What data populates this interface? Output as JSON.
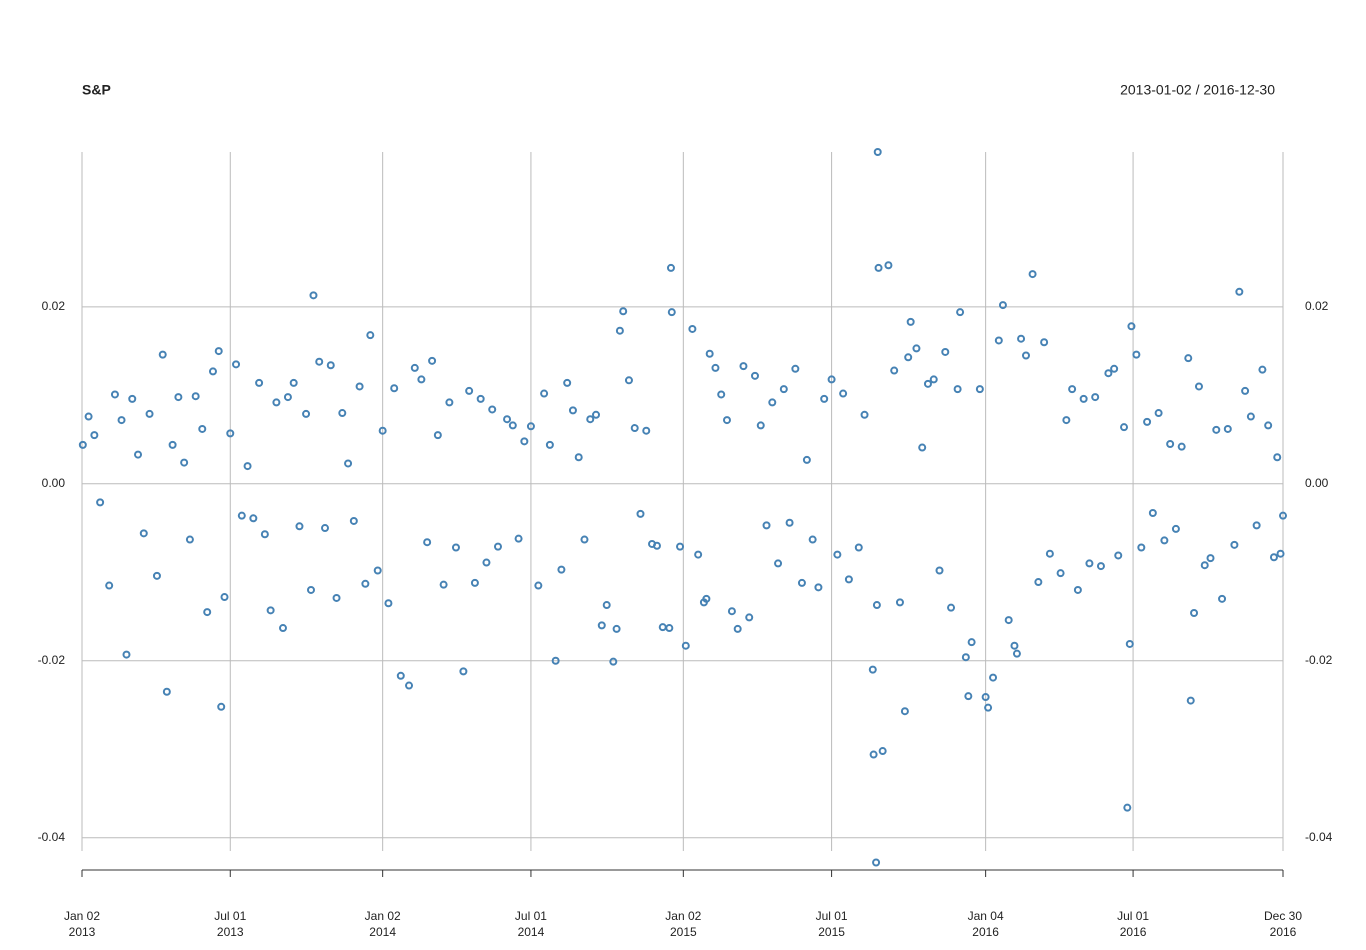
{
  "chart_data": {
    "type": "scatter",
    "title": "S&P",
    "subtitle": "2013-01-02 / 2016-12-30",
    "color": "#4682b4",
    "grid": true,
    "xlim": [
      "2013-01-02",
      "2016-12-30"
    ],
    "ylim": [
      -0.0415,
      0.0375
    ],
    "yticks": [
      0.02,
      {
        "value": 0,
        "label": "0.00"
      },
      -0.02,
      -0.04
    ],
    "xticks": [
      {
        "value": "2013-01-02",
        "label": "Jan 02 2013"
      },
      {
        "value": "2013-07-01",
        "label": "Jul 01 2013"
      },
      {
        "value": "2014-01-02",
        "label": "Jan 02 2014"
      },
      {
        "value": "2014-07-01",
        "label": "Jul 01 2014"
      },
      {
        "value": "2015-01-02",
        "label": "Jan 02 2015"
      },
      {
        "value": "2015-07-01",
        "label": "Jul 01 2015"
      },
      {
        "value": "2016-01-04",
        "label": "Jan 04 2016"
      },
      {
        "value": "2016-07-01",
        "label": "Jul 01 2016"
      },
      {
        "value": "2016-12-30",
        "label": "Dec 30 2016"
      }
    ],
    "x": [
      "2013-01-03",
      "2013-01-10",
      "2013-01-17",
      "2013-01-24",
      "2013-02-04",
      "2013-02-11",
      "2013-02-19",
      "2013-02-25",
      "2013-03-04",
      "2013-03-11",
      "2013-03-18",
      "2013-03-25",
      "2013-04-03",
      "2013-04-10",
      "2013-04-15",
      "2013-04-22",
      "2013-04-29",
      "2013-05-06",
      "2013-05-13",
      "2013-05-20",
      "2013-05-28",
      "2013-06-03",
      "2013-06-10",
      "2013-06-17",
      "2013-06-20",
      "2013-06-24",
      "2013-07-01",
      "2013-07-08",
      "2013-07-15",
      "2013-07-22",
      "2013-07-29",
      "2013-08-05",
      "2013-08-12",
      "2013-08-19",
      "2013-08-26",
      "2013-09-03",
      "2013-09-09",
      "2013-09-16",
      "2013-09-23",
      "2013-10-01",
      "2013-10-07",
      "2013-10-10",
      "2013-10-17",
      "2013-10-24",
      "2013-10-31",
      "2013-11-07",
      "2013-11-14",
      "2013-11-21",
      "2013-11-28",
      "2013-12-05",
      "2013-12-12",
      "2013-12-18",
      "2013-12-27",
      "2014-01-02",
      "2014-01-09",
      "2014-01-16",
      "2014-01-24",
      "2014-02-03",
      "2014-02-10",
      "2014-02-18",
      "2014-02-25",
      "2014-03-03",
      "2014-03-10",
      "2014-03-17",
      "2014-03-24",
      "2014-04-01",
      "2014-04-10",
      "2014-04-17",
      "2014-04-24",
      "2014-05-01",
      "2014-05-08",
      "2014-05-15",
      "2014-05-22",
      "2014-06-02",
      "2014-06-09",
      "2014-06-16",
      "2014-06-23",
      "2014-07-01",
      "2014-07-10",
      "2014-07-17",
      "2014-07-24",
      "2014-07-31",
      "2014-08-07",
      "2014-08-14",
      "2014-08-21",
      "2014-08-28",
      "2014-09-04",
      "2014-09-11",
      "2014-09-18",
      "2014-09-25",
      "2014-10-01",
      "2014-10-09",
      "2014-10-13",
      "2014-10-17",
      "2014-10-21",
      "2014-10-28",
      "2014-11-04",
      "2014-11-11",
      "2014-11-18",
      "2014-11-25",
      "2014-12-01",
      "2014-12-08",
      "2014-12-16",
      "2014-12-18",
      "2014-12-19",
      "2014-12-29",
      "2015-01-05",
      "2015-01-13",
      "2015-01-20",
      "2015-01-27",
      "2015-01-30",
      "2015-02-03",
      "2015-02-10",
      "2015-02-17",
      "2015-02-24",
      "2015-03-02",
      "2015-03-09",
      "2015-03-16",
      "2015-03-23",
      "2015-03-30",
      "2015-04-06",
      "2015-04-13",
      "2015-04-20",
      "2015-04-27",
      "2015-05-04",
      "2015-05-11",
      "2015-05-18",
      "2015-05-26",
      "2015-06-01",
      "2015-06-08",
      "2015-06-15",
      "2015-06-22",
      "2015-07-01",
      "2015-07-08",
      "2015-07-15",
      "2015-07-22",
      "2015-08-03",
      "2015-08-10",
      "2015-08-20",
      "2015-08-21",
      "2015-08-24",
      "2015-08-25",
      "2015-08-26",
      "2015-08-27",
      "2015-09-01",
      "2015-09-08",
      "2015-09-15",
      "2015-09-22",
      "2015-09-28",
      "2015-10-02",
      "2015-10-05",
      "2015-10-12",
      "2015-10-19",
      "2015-10-26",
      "2015-11-02",
      "2015-11-09",
      "2015-11-16",
      "2015-11-23",
      "2015-12-01",
      "2015-12-04",
      "2015-12-11",
      "2015-12-14",
      "2015-12-18",
      "2015-12-28",
      "2016-01-04",
      "2016-01-07",
      "2016-01-13",
      "2016-01-20",
      "2016-01-25",
      "2016-02-01",
      "2016-02-08",
      "2016-02-11",
      "2016-02-16",
      "2016-02-22",
      "2016-03-01",
      "2016-03-08",
      "2016-03-15",
      "2016-03-22",
      "2016-04-04",
      "2016-04-11",
      "2016-04-18",
      "2016-04-25",
      "2016-05-02",
      "2016-05-09",
      "2016-05-16",
      "2016-05-23",
      "2016-06-01",
      "2016-06-08",
      "2016-06-13",
      "2016-06-20",
      "2016-06-24",
      "2016-06-27",
      "2016-06-29",
      "2016-07-05",
      "2016-07-11",
      "2016-07-18",
      "2016-07-25",
      "2016-08-01",
      "2016-08-08",
      "2016-08-15",
      "2016-08-22",
      "2016-08-29",
      "2016-09-06",
      "2016-09-09",
      "2016-09-13",
      "2016-09-19",
      "2016-09-26",
      "2016-10-03",
      "2016-10-10",
      "2016-10-17",
      "2016-10-24",
      "2016-11-01",
      "2016-11-07",
      "2016-11-14",
      "2016-11-21",
      "2016-11-28",
      "2016-12-05",
      "2016-12-12",
      "2016-12-19",
      "2016-12-23",
      "2016-12-27",
      "2016-12-30"
    ],
    "values": [
      0.0044,
      0.0076,
      0.0055,
      -0.0021,
      -0.0115,
      0.0101,
      0.0072,
      -0.0193,
      0.0096,
      0.0033,
      -0.0056,
      0.0079,
      -0.0104,
      0.0146,
      -0.0235,
      0.0044,
      0.0098,
      0.0024,
      -0.0063,
      0.0099,
      0.0062,
      -0.0145,
      0.0127,
      0.015,
      -0.0252,
      -0.0128,
      0.0057,
      0.0135,
      -0.0036,
      0.002,
      -0.0039,
      0.0114,
      -0.0057,
      -0.0143,
      0.0092,
      -0.0163,
      0.0098,
      0.0114,
      -0.0048,
      0.0079,
      -0.012,
      0.0213,
      0.0138,
      -0.005,
      0.0134,
      -0.0129,
      0.008,
      0.0023,
      -0.0042,
      0.011,
      -0.0113,
      0.0168,
      -0.0098,
      0.006,
      -0.0135,
      0.0108,
      -0.0217,
      -0.0228,
      0.0131,
      0.0118,
      -0.0066,
      0.0139,
      0.0055,
      -0.0114,
      0.0092,
      -0.0072,
      -0.0212,
      0.0105,
      -0.0112,
      0.0096,
      -0.0089,
      0.0084,
      -0.0071,
      0.0073,
      0.0066,
      -0.0062,
      0.0048,
      0.0065,
      -0.0115,
      0.0102,
      0.0044,
      -0.02,
      -0.0097,
      0.0114,
      0.0083,
      0.003,
      -0.0063,
      0.0073,
      0.0078,
      -0.016,
      -0.0137,
      -0.0201,
      -0.0164,
      0.0173,
      0.0195,
      0.0117,
      0.0063,
      -0.0034,
      0.006,
      -0.0068,
      -0.007,
      -0.0162,
      -0.0163,
      0.0244,
      0.0194,
      -0.0071,
      -0.0183,
      0.0175,
      -0.008,
      -0.0134,
      -0.013,
      0.0147,
      0.0131,
      0.0101,
      0.0072,
      -0.0144,
      -0.0164,
      0.0133,
      -0.0151,
      0.0122,
      0.0066,
      -0.0047,
      0.0092,
      -0.009,
      0.0107,
      -0.0044,
      0.013,
      -0.0112,
      0.0027,
      -0.0063,
      -0.0117,
      0.0096,
      0.0118,
      -0.008,
      0.0102,
      -0.0108,
      -0.0072,
      0.0078,
      -0.021,
      -0.0306,
      -0.0428,
      -0.0137,
      0.0375,
      0.0244,
      -0.0302,
      0.0247,
      0.0128,
      -0.0134,
      -0.0257,
      0.0143,
      0.0183,
      0.0153,
      0.0041,
      0.0113,
      0.0118,
      -0.0098,
      0.0149,
      -0.014,
      0.0107,
      0.0194,
      -0.0196,
      -0.024,
      -0.0179,
      0.0107,
      -0.0241,
      -0.0253,
      -0.0219,
      0.0162,
      0.0202,
      -0.0154,
      -0.0183,
      -0.0192,
      0.0164,
      0.0145,
      0.0237,
      -0.0111,
      0.016,
      -0.0079,
      -0.0101,
      0.0072,
      0.0107,
      -0.012,
      0.0096,
      -0.009,
      0.0098,
      -0.0093,
      0.0125,
      0.013,
      -0.0081,
      0.0064,
      -0.0366,
      -0.0181,
      0.0178,
      0.0146,
      -0.0072,
      0.007,
      -0.0033,
      0.008,
      -0.0064,
      0.0045,
      -0.0051,
      0.0042,
      0.0142,
      -0.0245,
      -0.0146,
      0.011,
      -0.0092,
      -0.0084,
      0.0061,
      -0.013,
      0.0062,
      -0.0069,
      0.0217,
      0.0105,
      0.0076,
      -0.0047,
      0.0129,
      0.0066,
      -0.0083,
      0.003,
      -0.0079,
      -0.0036
    ]
  }
}
